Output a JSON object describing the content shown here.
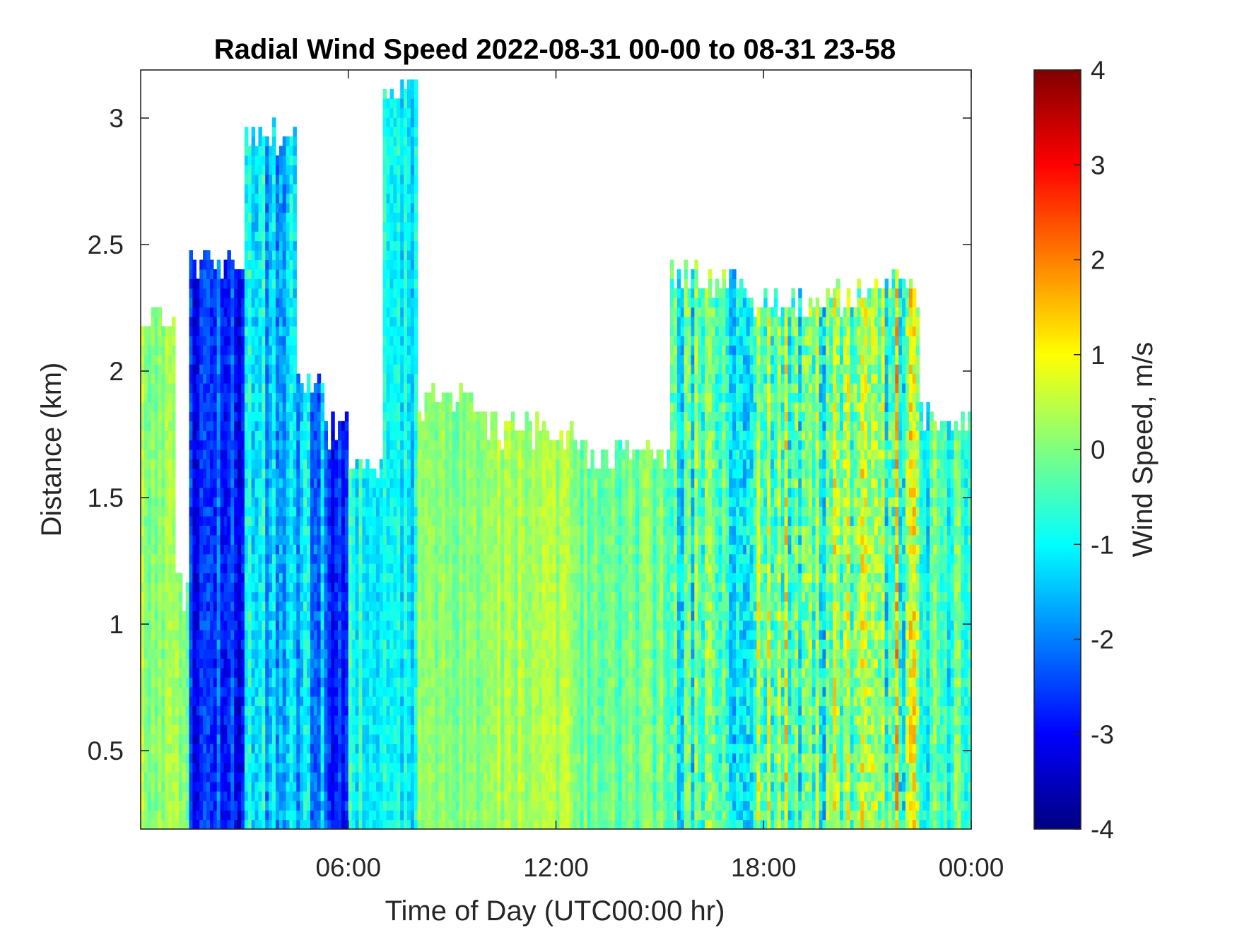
{
  "chart_data": {
    "type": "heatmap",
    "title": "Radial Wind Speed 2022-08-31 00-00 to 08-31 23-58",
    "xlabel": "Time of Day (UTC00:00 hr)",
    "ylabel": "Distance (km)",
    "xlim": [
      0,
      24
    ],
    "ylim": [
      0.19,
      3.19
    ],
    "x_ticks": [
      {
        "value": 6,
        "label": "06:00"
      },
      {
        "value": 12,
        "label": "12:00"
      },
      {
        "value": 18,
        "label": "18:00"
      },
      {
        "value": 24,
        "label": "00:00"
      }
    ],
    "y_ticks": [
      {
        "value": 0.5,
        "label": "0.5"
      },
      {
        "value": 1,
        "label": "1"
      },
      {
        "value": 1.5,
        "label": "1.5"
      },
      {
        "value": 2,
        "label": "2"
      },
      {
        "value": 2.5,
        "label": "2.5"
      },
      {
        "value": 3,
        "label": "3"
      }
    ],
    "grid": false,
    "colorbar": {
      "label": "Wind Speed, m/s",
      "colormap": "jet",
      "clim": [
        -4,
        4
      ],
      "ticks": [
        -4,
        -3,
        -2,
        -1,
        0,
        1,
        2,
        3,
        4
      ]
    },
    "time_segments": [
      {
        "t_start": 0.0,
        "t_end": 1.0,
        "top_km": 2.3,
        "mean_speed": 0.2,
        "spread": 0.6
      },
      {
        "t_start": 1.0,
        "t_end": 1.4,
        "top_km": 1.2,
        "mean_speed": 0.0,
        "spread": 0.6
      },
      {
        "t_start": 1.4,
        "t_end": 3.0,
        "top_km": 2.5,
        "mean_speed": -2.6,
        "spread": 0.9
      },
      {
        "t_start": 3.0,
        "t_end": 4.5,
        "top_km": 3.0,
        "mean_speed": -1.4,
        "spread": 1.0
      },
      {
        "t_start": 4.5,
        "t_end": 5.3,
        "top_km": 2.0,
        "mean_speed": -1.6,
        "spread": 1.0
      },
      {
        "t_start": 5.3,
        "t_end": 6.0,
        "top_km": 1.85,
        "mean_speed": -2.8,
        "spread": 0.8
      },
      {
        "t_start": 6.0,
        "t_end": 7.0,
        "top_km": 1.7,
        "mean_speed": -0.8,
        "spread": 0.7
      },
      {
        "t_start": 7.0,
        "t_end": 8.0,
        "top_km": 3.19,
        "mean_speed": -0.9,
        "spread": 0.8
      },
      {
        "t_start": 8.0,
        "t_end": 10.0,
        "top_km": 1.95,
        "mean_speed": 0.0,
        "spread": 0.5
      },
      {
        "t_start": 10.0,
        "t_end": 12.5,
        "top_km": 1.85,
        "mean_speed": 0.3,
        "spread": 0.5
      },
      {
        "t_start": 12.5,
        "t_end": 15.3,
        "top_km": 1.75,
        "mean_speed": -0.2,
        "spread": 0.6
      },
      {
        "t_start": 15.3,
        "t_end": 17.5,
        "top_km": 2.45,
        "mean_speed": -0.6,
        "spread": 1.2
      },
      {
        "t_start": 17.5,
        "t_end": 20.5,
        "top_km": 2.35,
        "mean_speed": -0.2,
        "spread": 1.6
      },
      {
        "t_start": 20.5,
        "t_end": 22.5,
        "top_km": 2.4,
        "mean_speed": 0.2,
        "spread": 1.7
      },
      {
        "t_start": 22.5,
        "t_end": 24.0,
        "top_km": 1.9,
        "mean_speed": -0.6,
        "spread": 1.0
      }
    ]
  }
}
